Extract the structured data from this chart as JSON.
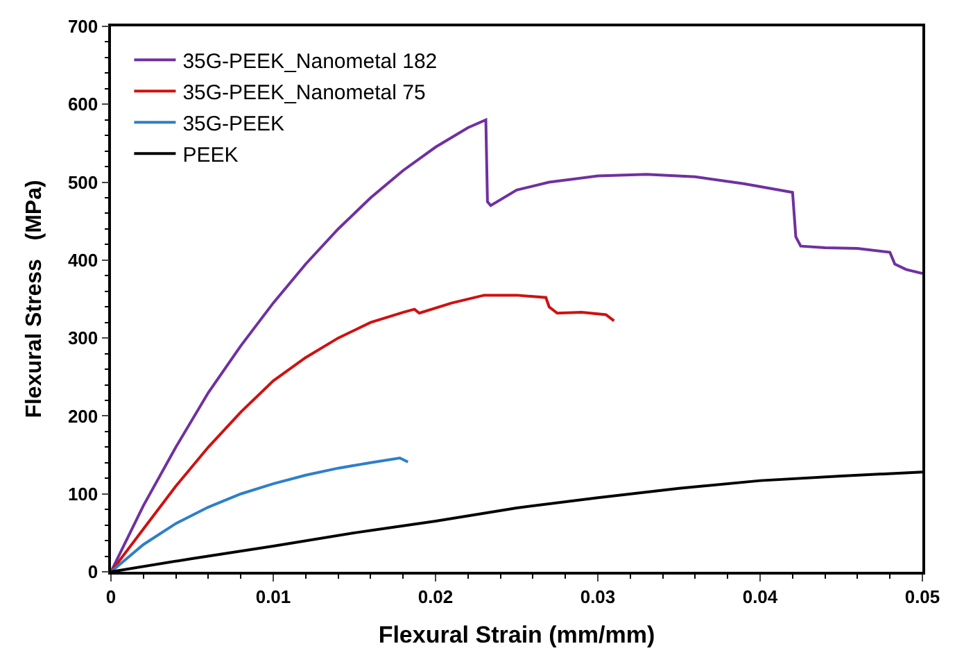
{
  "chart_data": {
    "type": "line",
    "xlabel": "Flexural Strain (mm/mm)",
    "ylabel": "Flexural Stress   (MPa)",
    "xlim": [
      0,
      0.05
    ],
    "xticks": [
      0,
      0.01,
      0.02,
      0.03,
      0.04,
      0.05
    ],
    "ylim": [
      0,
      700
    ],
    "yticks": [
      0,
      100,
      200,
      300,
      400,
      500,
      600,
      700
    ],
    "legend": "top left",
    "marker": "none",
    "line_style": "solid",
    "series": [
      {
        "name": "35G-PEEK_Nanometal 182",
        "color": "#7030a0",
        "x": [
          0,
          0.002,
          0.004,
          0.006,
          0.008,
          0.01,
          0.012,
          0.014,
          0.016,
          0.018,
          0.02,
          0.022,
          0.0231,
          0.0232,
          0.0234,
          0.025,
          0.027,
          0.03,
          0.033,
          0.036,
          0.039,
          0.042,
          0.0422,
          0.0425,
          0.044,
          0.046,
          0.048,
          0.0483,
          0.049,
          0.05
        ],
        "values": [
          0,
          85,
          160,
          230,
          290,
          345,
          395,
          440,
          480,
          515,
          545,
          570,
          580,
          475,
          470,
          490,
          500,
          508,
          510,
          507,
          498,
          487,
          430,
          418,
          416,
          415,
          410,
          395,
          388,
          383
        ]
      },
      {
        "name": "35G-PEEK_Nanometal 75",
        "color": "#d01010",
        "x": [
          0,
          0.002,
          0.004,
          0.006,
          0.008,
          0.01,
          0.012,
          0.014,
          0.016,
          0.018,
          0.0187,
          0.019,
          0.021,
          0.023,
          0.025,
          0.0268,
          0.027,
          0.0275,
          0.029,
          0.0305,
          0.031
        ],
        "values": [
          0,
          55,
          110,
          160,
          205,
          245,
          275,
          300,
          320,
          333,
          337,
          332,
          345,
          355,
          355,
          352,
          340,
          332,
          333,
          330,
          322
        ]
      },
      {
        "name": "35G-PEEK",
        "color": "#2e7fc8",
        "x": [
          0,
          0.002,
          0.004,
          0.006,
          0.008,
          0.01,
          0.012,
          0.014,
          0.016,
          0.0178,
          0.0183
        ],
        "values": [
          0,
          35,
          62,
          83,
          100,
          113,
          124,
          133,
          140,
          146,
          141
        ]
      },
      {
        "name": "PEEK",
        "color": "#000000",
        "x": [
          0,
          0.005,
          0.01,
          0.015,
          0.02,
          0.025,
          0.03,
          0.035,
          0.04,
          0.045,
          0.05
        ],
        "values": [
          0,
          17,
          33,
          50,
          65,
          82,
          95,
          107,
          117,
          123,
          128
        ]
      }
    ]
  }
}
